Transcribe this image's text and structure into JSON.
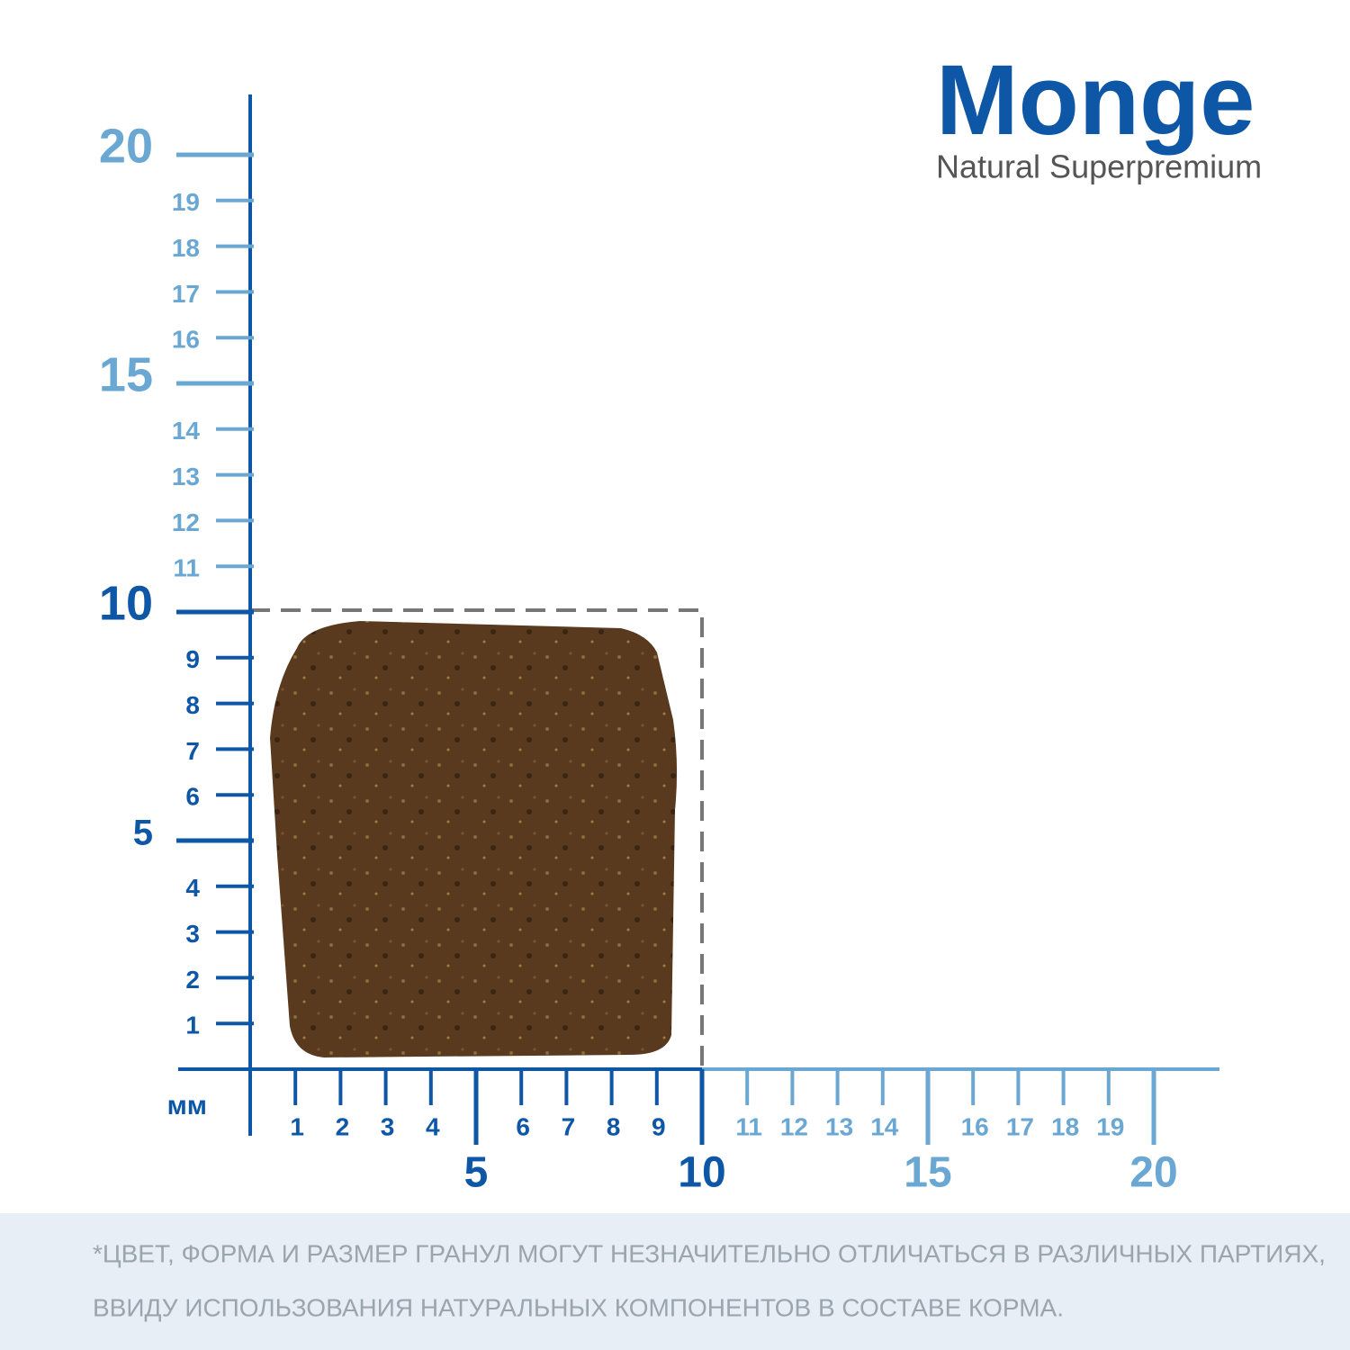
{
  "brand": {
    "name": "Monge",
    "tagline": "Natural Superpremium"
  },
  "ruler": {
    "unit": "мм",
    "x_ticks": [
      1,
      2,
      3,
      4,
      5,
      6,
      7,
      8,
      9,
      10,
      11,
      12,
      13,
      14,
      15,
      16,
      17,
      18,
      19,
      20
    ],
    "y_ticks": [
      1,
      2,
      3,
      4,
      5,
      6,
      7,
      8,
      9,
      10,
      11,
      12,
      13,
      14,
      15,
      16,
      17,
      18,
      19,
      20
    ]
  },
  "disclaimer": [
    "*ЦВЕТ, ФОРМА И РАЗМЕР ГРАНУЛ МОГУТ НЕЗНАЧИТЕЛЬНО ОТЛИЧАТЬСЯ В РАЗЛИЧНЫХ ПАРТИЯХ,",
    "ВВИДУ ИСПОЛЬЗОВАНИЯ НАТУРАЛЬНЫХ КОМПОНЕНТОВ В СОСТАВЕ КОРМА."
  ]
}
